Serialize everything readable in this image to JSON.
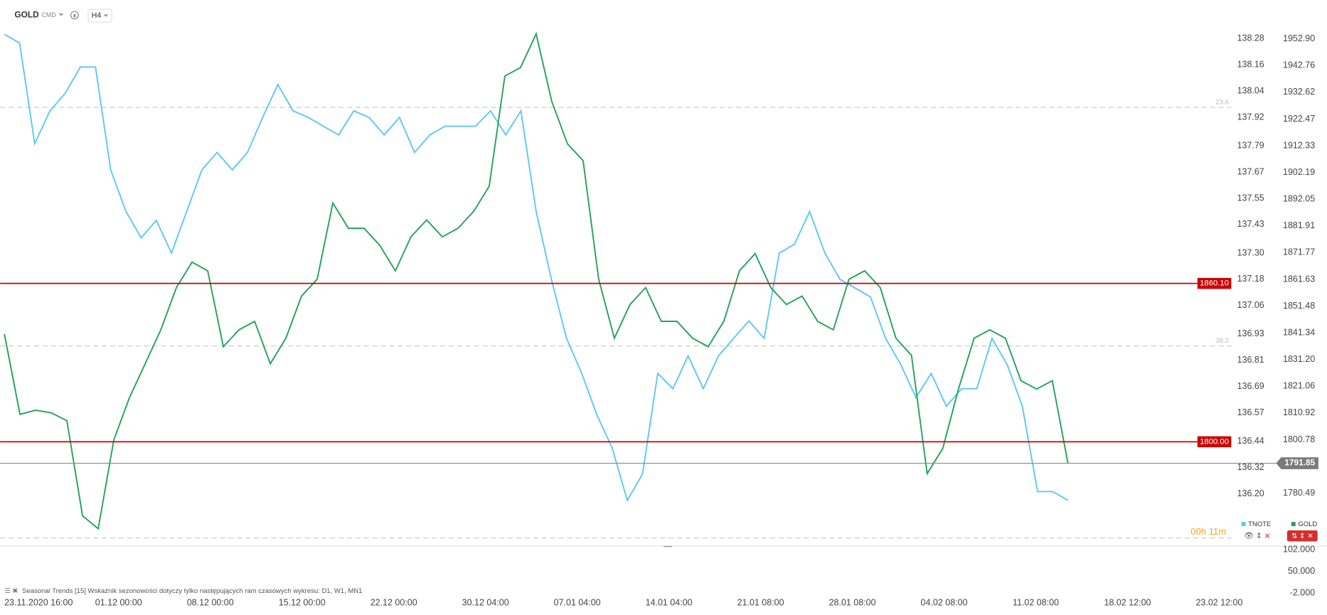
{
  "toolbar": {
    "symbol": "GOLD",
    "market": "CMD",
    "interval": "H4"
  },
  "chart_data": {
    "type": "line",
    "x_labels": [
      "23.11.2020  16:00",
      "01.12  00:00",
      "08.12  00:00",
      "15.12  00:00",
      "22.12  00:00",
      "30.12  04:00",
      "07.01  04:00",
      "14.01  04:00",
      "21.01  08:00",
      "28.01  08:00",
      "04.02  08:00",
      "11.02  08:00",
      "18.02  12:00",
      "23.02  12:00"
    ],
    "series": [
      {
        "name": "GOLD",
        "color": "#21a35a",
        "values": [
          1840.9,
          1810.4,
          1812.0,
          1811.0,
          1808.0,
          1771.9,
          1767.0,
          1800.7,
          1816.8,
          1829.6,
          1842.5,
          1858.5,
          1868.2,
          1864.9,
          1836.1,
          1842.5,
          1845.7,
          1829.6,
          1839.3,
          1855.3,
          1861.7,
          1890.6,
          1881.0,
          1881.0,
          1874.6,
          1864.9,
          1877.8,
          1884.2,
          1877.8,
          1881.0,
          1887.4,
          1897.0,
          1938.8,
          1942.0,
          1954.8,
          1929.1,
          1913.1,
          1906.7,
          1861.7,
          1839.3,
          1852.1,
          1858.5,
          1845.7,
          1845.7,
          1839.3,
          1836.1,
          1845.7,
          1864.9,
          1871.4,
          1858.5,
          1852.1,
          1855.3,
          1845.7,
          1842.5,
          1861.7,
          1864.9,
          1858.5,
          1839.3,
          1832.8,
          1787.9,
          1797.5,
          1820.0,
          1839.3,
          1842.5,
          1839.3,
          1823.2,
          1820.0,
          1823.2,
          1791.85
        ]
      },
      {
        "name": "TNOTE",
        "color": "#5bc8f5",
        "axis": "y2",
        "values": [
          138.3,
          138.26,
          137.8,
          137.95,
          138.03,
          138.15,
          138.15,
          137.68,
          137.49,
          137.37,
          137.45,
          137.3,
          137.49,
          137.68,
          137.76,
          137.68,
          137.76,
          137.92,
          138.07,
          137.95,
          137.92,
          137.88,
          137.84,
          137.95,
          137.92,
          137.84,
          137.92,
          137.76,
          137.84,
          137.88,
          137.88,
          137.88,
          137.95,
          137.84,
          137.95,
          137.49,
          137.18,
          136.91,
          136.75,
          136.56,
          136.41,
          136.17,
          136.29,
          136.75,
          136.68,
          136.83,
          136.68,
          136.83,
          136.91,
          136.99,
          136.91,
          137.3,
          137.34,
          137.49,
          137.3,
          137.18,
          137.14,
          137.1,
          136.91,
          136.79,
          136.64,
          136.75,
          136.6,
          136.68,
          136.68,
          136.91,
          136.79,
          136.6,
          136.21,
          136.21,
          136.17
        ]
      }
    ],
    "ylim": [
      1762.83,
      1959.64
    ],
    "yticks": [
      {
        "value": 1952.9,
        "label": "1952.90"
      },
      1942.76,
      1932.62,
      1922.47,
      1912.33,
      1902.19,
      1892.05,
      1881.91,
      1871.77,
      1861.63,
      1851.48,
      1841.34,
      {
        "value": 1831.2,
        "label": "1831.20"
      },
      1821.06,
      1810.92,
      1800.78,
      1780.49
    ],
    "y2lim": [
      135.99,
      138.36
    ],
    "y2ticks": [
      138.28,
      138.16,
      138.04,
      137.92,
      137.79,
      137.67,
      137.55,
      137.43,
      {
        "value": 137.3,
        "label": "137.30"
      },
      137.18,
      137.06,
      136.93,
      136.81,
      136.69,
      136.57,
      136.44,
      136.32,
      {
        "value": 136.2,
        "label": "136.20"
      }
    ],
    "levels": [
      {
        "value": 1860.1,
        "label": "1860.10"
      },
      {
        "value": 1800,
        "label": "1800.00"
      }
    ],
    "last_price": 1791.85,
    "fibonacci": [
      "23.6",
      "38.2"
    ],
    "timer": "00h 11m"
  },
  "indicator": {
    "title": "Seasonal Trends [15] Wskaźnik sezonowości dotyczy tylko następujących ram czasowych wykresu: D1, W1, MN1",
    "ylim": [
      -10.2,
      112.2
    ],
    "yticks": [
      {
        "value": 102,
        "label": "102.000"
      },
      {
        "value": 50,
        "label": "50.000"
      },
      {
        "value": -2,
        "label": "-2.000"
      }
    ]
  }
}
